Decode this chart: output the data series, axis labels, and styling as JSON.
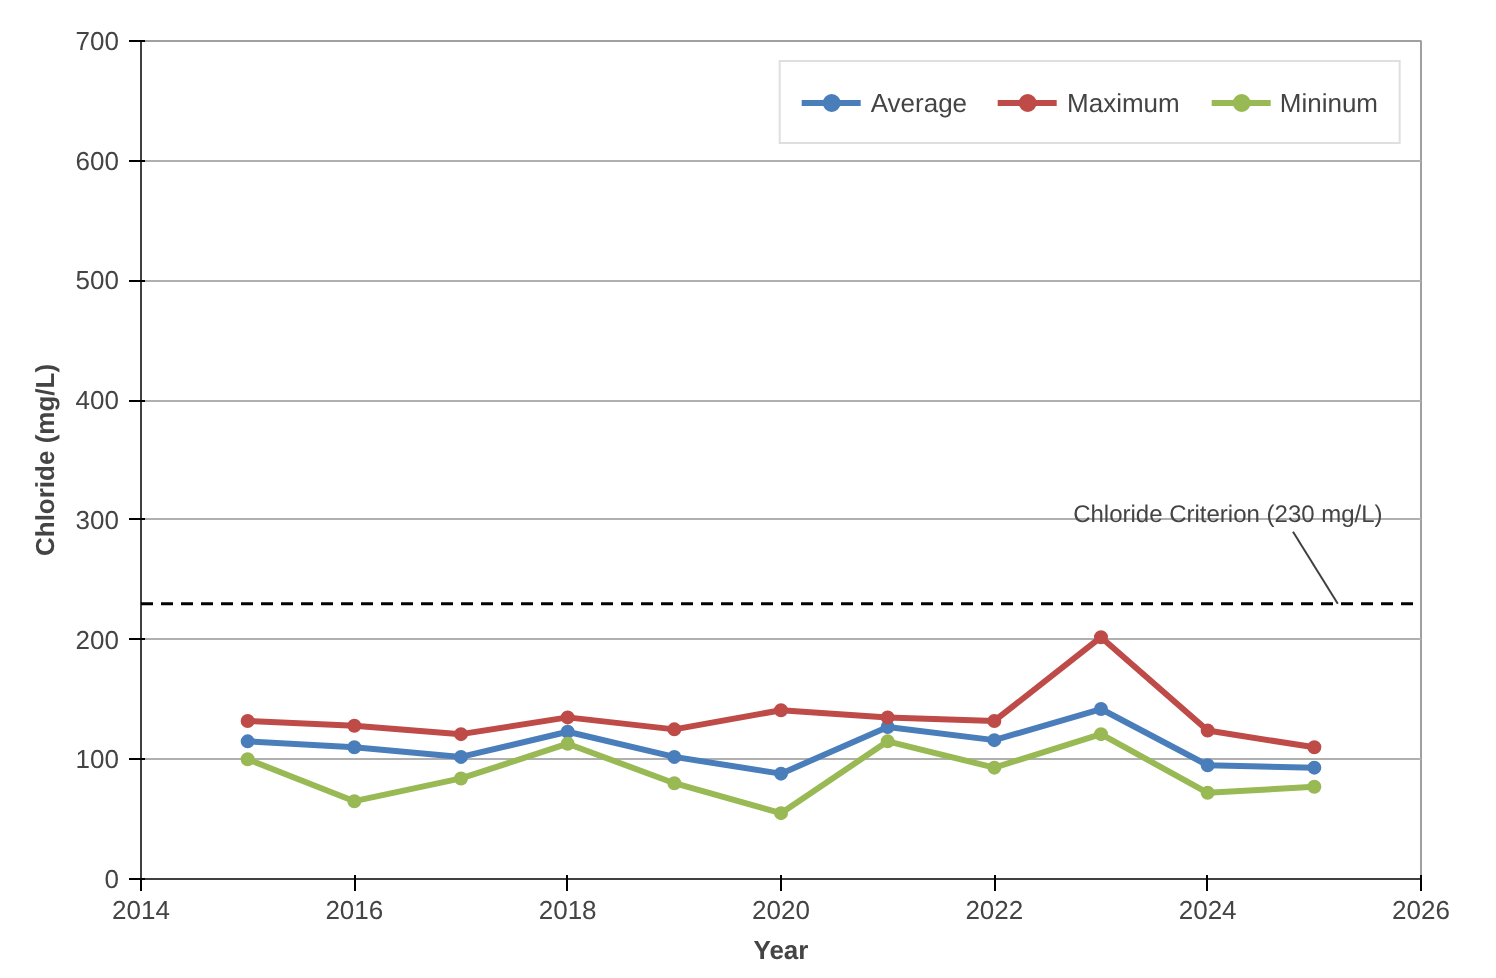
{
  "chart_data": {
    "type": "line",
    "xlabel": "Year",
    "ylabel": "Chloride (mg/L)",
    "x": [
      2015,
      2016,
      2017,
      2018,
      2019,
      2020,
      2021,
      2022,
      2023,
      2024,
      2025
    ],
    "series": [
      {
        "name": "Average",
        "color": "#4a7ebb",
        "values": [
          115,
          110,
          102,
          123,
          102,
          88,
          127,
          116,
          142,
          95,
          93
        ]
      },
      {
        "name": "Maximum",
        "color": "#be4b48",
        "values": [
          132,
          128,
          121,
          135,
          125,
          141,
          135,
          132,
          202,
          124,
          110
        ]
      },
      {
        "name": "Mininum",
        "color": "#98b954",
        "values": [
          100,
          65,
          84,
          113,
          80,
          55,
          115,
          93,
          121,
          72,
          77
        ]
      }
    ],
    "xlim": [
      2014,
      2026
    ],
    "xticks": [
      2014,
      2016,
      2018,
      2020,
      2022,
      2024,
      2026
    ],
    "ylim": [
      0,
      700
    ],
    "yticks": [
      0,
      100,
      200,
      300,
      400,
      500,
      600,
      700
    ],
    "grid": "y",
    "legend": "top right",
    "marker": "circle",
    "line_style": "solid",
    "ref_lines": [
      {
        "axis": "y",
        "value": 230,
        "label": "Chloride Criterion (230 mg/L)",
        "color": "#000000",
        "line_style": "dashed"
      }
    ]
  }
}
